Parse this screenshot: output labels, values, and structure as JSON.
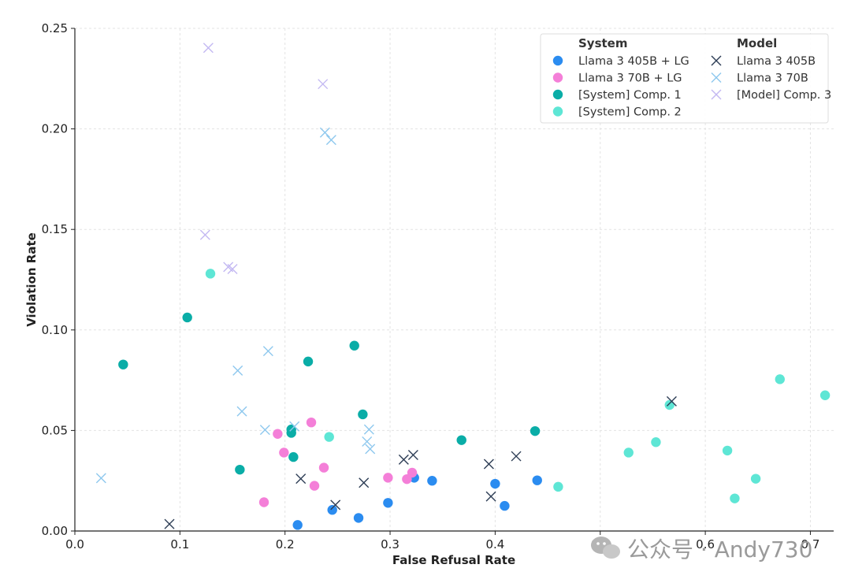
{
  "chart_data": {
    "type": "scatter",
    "xlabel": "False Refusal Rate",
    "ylabel": "Violation Rate",
    "xlim": [
      0.0,
      0.72
    ],
    "ylim": [
      0.0,
      0.25
    ],
    "xticks": [
      "0.0",
      "0.1",
      "0.2",
      "0.3",
      "0.4",
      "0.5",
      "0.6",
      "0.7"
    ],
    "yticks": [
      "0.00",
      "0.05",
      "0.10",
      "0.15",
      "0.20",
      "0.25"
    ],
    "grid": true,
    "legend": {
      "placement": "top-right",
      "headers": [
        "System",
        "Model"
      ]
    },
    "series": [
      {
        "name": "Llama 3 405B + LG",
        "group": "System",
        "marker": "circle",
        "color": "#2b8cf0",
        "points": [
          [
            0.212,
            0.003
          ],
          [
            0.245,
            0.0105
          ],
          [
            0.27,
            0.0065
          ],
          [
            0.298,
            0.014
          ],
          [
            0.323,
            0.0265
          ],
          [
            0.34,
            0.025
          ],
          [
            0.4,
            0.0235
          ],
          [
            0.409,
            0.0125
          ],
          [
            0.44,
            0.0252
          ]
        ]
      },
      {
        "name": "Llama 3 70B + LG",
        "group": "System",
        "marker": "circle",
        "color": "#f47fd8",
        "points": [
          [
            0.18,
            0.0143
          ],
          [
            0.193,
            0.0483
          ],
          [
            0.199,
            0.039
          ],
          [
            0.225,
            0.054
          ],
          [
            0.228,
            0.0225
          ],
          [
            0.237,
            0.0315
          ],
          [
            0.298,
            0.0265
          ],
          [
            0.316,
            0.0258
          ],
          [
            0.321,
            0.029
          ]
        ]
      },
      {
        "name": "[System] Comp. 1",
        "group": "System",
        "marker": "circle",
        "color": "#0aada7",
        "points": [
          [
            0.046,
            0.0828
          ],
          [
            0.107,
            0.1062
          ],
          [
            0.157,
            0.0305
          ],
          [
            0.206,
            0.0505
          ],
          [
            0.206,
            0.0488
          ],
          [
            0.208,
            0.0368
          ],
          [
            0.222,
            0.0843
          ],
          [
            0.266,
            0.0922
          ],
          [
            0.274,
            0.058
          ],
          [
            0.368,
            0.0452
          ],
          [
            0.438,
            0.0497
          ]
        ]
      },
      {
        "name": "[System] Comp. 2",
        "group": "System",
        "marker": "circle",
        "color": "#5ee6d5",
        "points": [
          [
            0.129,
            0.128
          ],
          [
            0.242,
            0.0468
          ],
          [
            0.46,
            0.022
          ],
          [
            0.527,
            0.039
          ],
          [
            0.553,
            0.0442
          ],
          [
            0.566,
            0.0627
          ],
          [
            0.621,
            0.04
          ],
          [
            0.628,
            0.0162
          ],
          [
            0.648,
            0.026
          ],
          [
            0.671,
            0.0755
          ],
          [
            0.714,
            0.0675
          ]
        ]
      },
      {
        "name": "Llama 3 405B",
        "group": "Model",
        "marker": "x",
        "color": "#2d3d55",
        "points": [
          [
            0.09,
            0.0035
          ],
          [
            0.215,
            0.026
          ],
          [
            0.248,
            0.013
          ],
          [
            0.275,
            0.024
          ],
          [
            0.313,
            0.0355
          ],
          [
            0.322,
            0.0378
          ],
          [
            0.394,
            0.0333
          ],
          [
            0.396,
            0.0172
          ],
          [
            0.42,
            0.0372
          ],
          [
            0.568,
            0.0645
          ]
        ]
      },
      {
        "name": "Llama 3 70B",
        "group": "Model",
        "marker": "x",
        "color": "#8ec8ee",
        "points": [
          [
            0.025,
            0.0263
          ],
          [
            0.155,
            0.0798
          ],
          [
            0.159,
            0.0595
          ],
          [
            0.181,
            0.0503
          ],
          [
            0.184,
            0.0895
          ],
          [
            0.209,
            0.052
          ],
          [
            0.238,
            0.1982
          ],
          [
            0.244,
            0.1945
          ],
          [
            0.278,
            0.0445
          ],
          [
            0.28,
            0.0505
          ],
          [
            0.281,
            0.0408
          ]
        ]
      },
      {
        "name": "[Model] Comp. 3",
        "group": "Model",
        "marker": "x",
        "color": "#c3b8f2",
        "points": [
          [
            0.124,
            0.1473
          ],
          [
            0.127,
            0.2403
          ],
          [
            0.146,
            0.1313
          ],
          [
            0.15,
            0.1303
          ],
          [
            0.236,
            0.2223
          ]
        ]
      }
    ]
  },
  "watermark": {
    "text": "公众号 · Andy730"
  }
}
